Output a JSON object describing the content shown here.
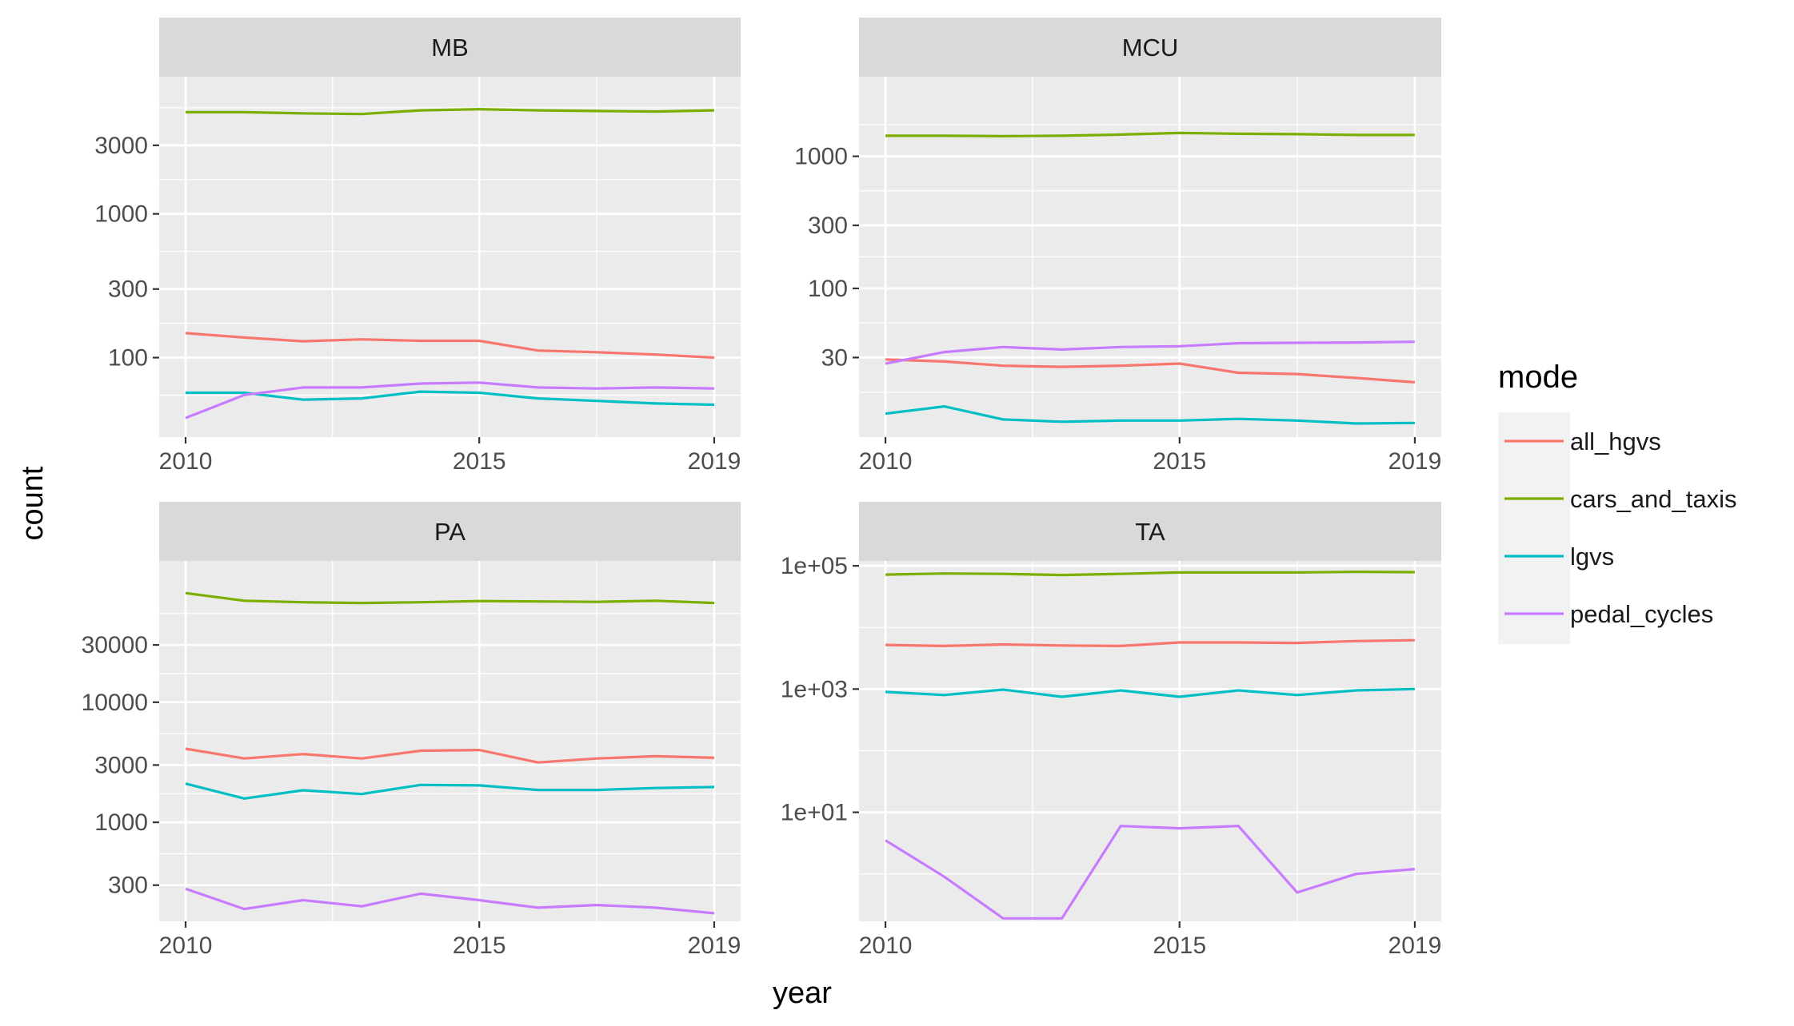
{
  "chart_data": {
    "type": "line",
    "facet_layout": "2x2",
    "x_label": "year",
    "y_label": "count",
    "y_scale": "log10",
    "xlim": [
      2010,
      2019
    ],
    "x_ticks": [
      2010,
      2015,
      2019
    ],
    "grid": true,
    "legend": {
      "title": "mode",
      "position": "right",
      "entries": [
        {
          "name": "all_hgvs",
          "color": "#F8766D"
        },
        {
          "name": "cars_and_taxis",
          "color": "#7CAE00"
        },
        {
          "name": "lgvs",
          "color": "#00BFC4"
        },
        {
          "name": "pedal_cycles",
          "color": "#C77CFF"
        }
      ]
    },
    "panels": [
      {
        "title": "MB",
        "ylim": [
          28,
          9000
        ],
        "y_ticks": [
          100,
          300,
          1000,
          3000
        ],
        "y_tick_labels": [
          "100",
          "300",
          "1000",
          "3000"
        ],
        "y_minor": [
          54.8,
          173.2,
          547.7,
          1732.1,
          5477.2
        ],
        "series": [
          {
            "name": "all_hgvs",
            "x": [
              2010,
              2011,
              2012,
              2013,
              2014,
              2015,
              2016,
              2017,
              2018,
              2019
            ],
            "y": [
              148,
              138,
              130,
              134,
              131,
              131,
              112,
              109,
              105,
              100
            ]
          },
          {
            "name": "cars_and_taxis",
            "x": [
              2010,
              2011,
              2012,
              2013,
              2014,
              2015,
              2016,
              2017,
              2018,
              2019
            ],
            "y": [
              5100,
              5100,
              5000,
              4950,
              5250,
              5350,
              5250,
              5200,
              5150,
              5250
            ]
          },
          {
            "name": "lgvs",
            "x": [
              2010,
              2011,
              2012,
              2013,
              2014,
              2015,
              2016,
              2017,
              2018,
              2019
            ],
            "y": [
              57,
              57,
              51,
              52,
              58,
              57,
              52,
              50,
              48,
              47
            ]
          },
          {
            "name": "pedal_cycles",
            "x": [
              2010,
              2011,
              2012,
              2013,
              2014,
              2015,
              2016,
              2017,
              2018,
              2019
            ],
            "y": [
              38,
              55,
              62,
              62,
              66,
              67,
              62,
              61,
              62,
              61
            ]
          }
        ]
      },
      {
        "title": "MCU",
        "ylim": [
          7.5,
          4000
        ],
        "y_ticks": [
          30,
          100,
          300,
          1000
        ],
        "y_tick_labels": [
          "30",
          "100",
          "300",
          "1000"
        ],
        "y_minor": [
          54.8,
          173.2,
          547.7,
          1732.1,
          16.4
        ],
        "series": [
          {
            "name": "all_hgvs",
            "x": [
              2010,
              2011,
              2012,
              2013,
              2014,
              2015,
              2016,
              2017,
              2018,
              2019
            ],
            "y": [
              29,
              28,
              26,
              25.5,
              26,
              27,
              23,
              22.5,
              21,
              19.5
            ]
          },
          {
            "name": "cars_and_taxis",
            "x": [
              2010,
              2011,
              2012,
              2013,
              2014,
              2015,
              2016,
              2017,
              2018,
              2019
            ],
            "y": [
              1430,
              1430,
              1420,
              1430,
              1460,
              1500,
              1480,
              1470,
              1450,
              1450
            ]
          },
          {
            "name": "lgvs",
            "x": [
              2010,
              2011,
              2012,
              2013,
              2014,
              2015,
              2016,
              2017,
              2018,
              2019
            ],
            "y": [
              11.3,
              12.8,
              10.2,
              9.8,
              10.0,
              10.0,
              10.3,
              10.0,
              9.5,
              9.6
            ]
          },
          {
            "name": "pedal_cycles",
            "x": [
              2010,
              2011,
              2012,
              2013,
              2014,
              2015,
              2016,
              2017,
              2018,
              2019
            ],
            "y": [
              27,
              33,
              36,
              34.5,
              36,
              36.5,
              38.5,
              38.8,
              39,
              39.5
            ]
          }
        ]
      },
      {
        "title": "PA",
        "ylim": [
          150,
          150000
        ],
        "y_ticks": [
          300,
          1000,
          3000,
          10000,
          30000
        ],
        "y_tick_labels": [
          "300",
          "1000",
          "3000",
          "10000",
          "30000"
        ],
        "y_minor": [
          547.7,
          1732.1,
          5477.2,
          17320.5,
          54772.3
        ],
        "series": [
          {
            "name": "all_hgvs",
            "x": [
              2010,
              2011,
              2012,
              2013,
              2014,
              2015,
              2016,
              2017,
              2018,
              2019
            ],
            "y": [
              4100,
              3400,
              3700,
              3400,
              3950,
              4000,
              3150,
              3400,
              3550,
              3450
            ]
          },
          {
            "name": "cars_and_taxis",
            "x": [
              2010,
              2011,
              2012,
              2013,
              2014,
              2015,
              2016,
              2017,
              2018,
              2019
            ],
            "y": [
              81000,
              70000,
              68000,
              67000,
              68000,
              69500,
              69000,
              68500,
              70000,
              67000
            ]
          },
          {
            "name": "lgvs",
            "x": [
              2010,
              2011,
              2012,
              2013,
              2014,
              2015,
              2016,
              2017,
              2018,
              2019
            ],
            "y": [
              2100,
              1580,
              1850,
              1720,
              2050,
              2030,
              1860,
              1860,
              1930,
              1970
            ]
          },
          {
            "name": "pedal_cycles",
            "x": [
              2010,
              2011,
              2012,
              2013,
              2014,
              2015,
              2016,
              2017,
              2018,
              2019
            ],
            "y": [
              280,
              190,
              225,
              200,
              255,
              225,
              195,
              205,
              195,
              175
            ]
          }
        ]
      },
      {
        "title": "TA",
        "ylim": [
          0.17,
          120000
        ],
        "y_ticks": [
          10,
          1000,
          100000
        ],
        "y_tick_labels": [
          "1e+01",
          "1e+03",
          "1e+05"
        ],
        "y_minor": [
          1,
          100,
          10000
        ],
        "series": [
          {
            "name": "all_hgvs",
            "x": [
              2010,
              2011,
              2012,
              2013,
              2014,
              2015,
              2016,
              2017,
              2018,
              2019
            ],
            "y": [
              5200,
              5000,
              5300,
              5100,
              5000,
              5700,
              5700,
              5600,
              6000,
              6200
            ]
          },
          {
            "name": "cars_and_taxis",
            "x": [
              2010,
              2011,
              2012,
              2013,
              2014,
              2015,
              2016,
              2017,
              2018,
              2019
            ],
            "y": [
              72000,
              75000,
              74000,
              71000,
              74000,
              78000,
              78000,
              78000,
              80000,
              79000
            ]
          },
          {
            "name": "lgvs",
            "x": [
              2010,
              2011,
              2012,
              2013,
              2014,
              2015,
              2016,
              2017,
              2018,
              2019
            ],
            "y": [
              900,
              800,
              980,
              750,
              950,
              750,
              950,
              800,
              950,
              1000
            ]
          },
          {
            "name": "pedal_cycles",
            "x": [
              2010,
              2011,
              2012,
              2013,
              2014,
              2015,
              2016,
              2017,
              2018,
              2019
            ],
            "y": [
              3.5,
              0.9,
              0.19,
              0.19,
              6.0,
              5.5,
              6.0,
              0.5,
              1.0,
              1.2
            ]
          }
        ]
      }
    ]
  }
}
